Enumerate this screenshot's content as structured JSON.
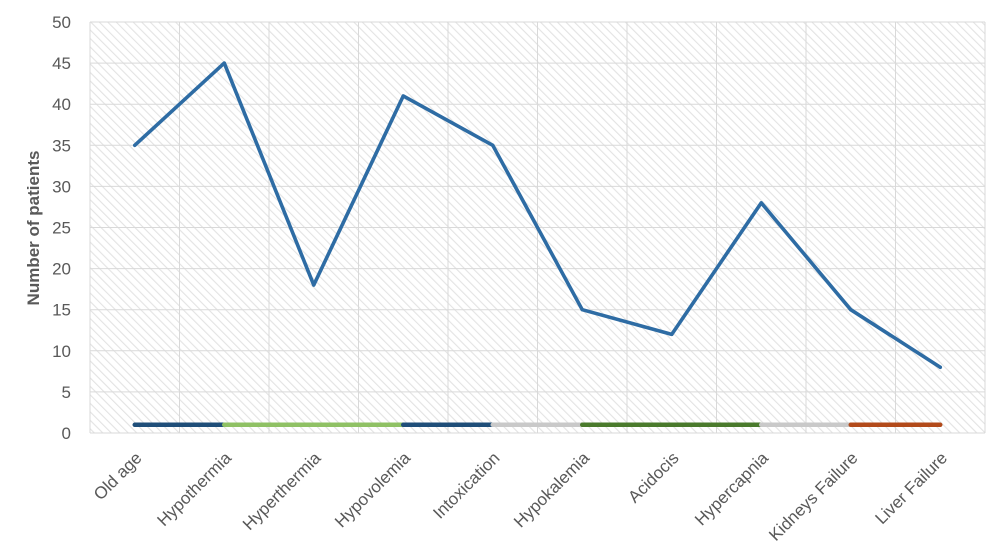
{
  "chart_data": {
    "type": "line",
    "title": "",
    "xlabel": "",
    "ylabel": "Number of patients",
    "ylim": [
      0,
      50
    ],
    "yticks": [
      0,
      5,
      10,
      15,
      20,
      25,
      30,
      35,
      40,
      45,
      50
    ],
    "grid": "vertical and horizontal, hatched plot background",
    "legend": "none",
    "categories": [
      "Old age",
      "Hypothermia",
      "Hyperthermia",
      "Hypovolemia",
      "Intoxication",
      "Hypokalemia",
      "Acidocis",
      "Hypercapnia",
      "Kidneys Failure",
      "Liver Failure"
    ],
    "series": [
      {
        "values": [
          35,
          45,
          18,
          41,
          35,
          15,
          12,
          28,
          15,
          8
        ],
        "color": "#2e6ca4"
      }
    ],
    "baseline_band": {
      "value": 1,
      "segments": [
        {
          "from": 0,
          "to": 1,
          "color": "#1f4e79"
        },
        {
          "from": 1,
          "to": 3,
          "color": "#8fc164"
        },
        {
          "from": 3,
          "to": 4,
          "color": "#1f4e79"
        },
        {
          "from": 4,
          "to": 5,
          "color": "#c9c9c9"
        },
        {
          "from": 5,
          "to": 7,
          "color": "#4a7a2c"
        },
        {
          "from": 7,
          "to": 8,
          "color": "#c9c9c9"
        },
        {
          "from": 8,
          "to": 9,
          "color": "#b24a1a"
        }
      ]
    }
  }
}
